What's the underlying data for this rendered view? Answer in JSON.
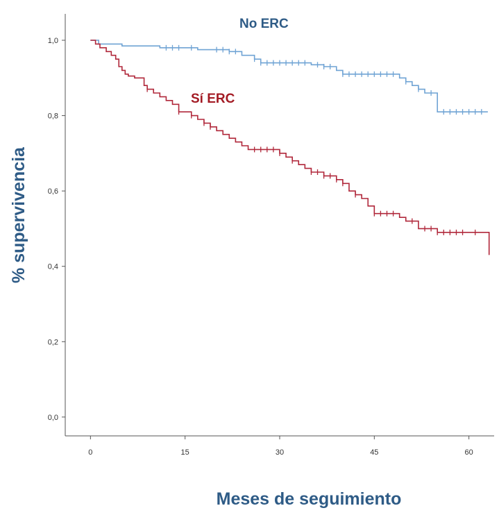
{
  "chart_data": {
    "type": "line",
    "subtype": "kaplan-meier step curves",
    "title": "",
    "xlabel": "Meses de seguimiento",
    "ylabel": "% supervivencia",
    "xlim": [
      -4,
      64
    ],
    "ylim": [
      -0.05,
      1.07
    ],
    "x_ticks": [
      0,
      15,
      30,
      45,
      60
    ],
    "x_tick_labels": [
      "0",
      "15",
      "30",
      "45",
      "60"
    ],
    "y_ticks": [
      0.0,
      0.2,
      0.4,
      0.6,
      0.8,
      1.0
    ],
    "y_tick_labels": [
      "0,0",
      "0,2",
      "0,4",
      "0,6",
      "0,8",
      "1,0"
    ],
    "grid": false,
    "legend": "none (series labelled directly on the plot)",
    "series": [
      {
        "name": "No ERC",
        "color": "#6fa3d4",
        "label_color": "#2e5b86",
        "steps": [
          [
            0,
            1.0
          ],
          [
            1.3,
            0.99
          ],
          [
            5,
            0.985
          ],
          [
            11,
            0.98
          ],
          [
            17,
            0.975
          ],
          [
            22,
            0.97
          ],
          [
            24,
            0.96
          ],
          [
            26,
            0.95
          ],
          [
            27,
            0.94
          ],
          [
            35,
            0.935
          ],
          [
            37,
            0.93
          ],
          [
            39,
            0.92
          ],
          [
            40,
            0.91
          ],
          [
            49,
            0.9
          ],
          [
            50,
            0.89
          ],
          [
            51,
            0.88
          ],
          [
            52,
            0.87
          ],
          [
            53,
            0.86
          ],
          [
            55,
            0.81
          ],
          [
            63,
            0.81
          ]
        ],
        "censored_x": [
          12,
          13,
          14,
          16,
          20,
          21,
          22,
          23,
          26,
          27,
          28,
          29,
          30,
          31,
          32,
          33,
          34,
          36,
          37,
          38,
          40,
          41,
          42,
          43,
          44,
          45,
          46,
          47,
          48,
          50,
          52,
          54,
          56,
          57,
          58,
          59,
          60,
          61,
          62
        ]
      },
      {
        "name": "Sí ERC",
        "color": "#b0273a",
        "label_color": "#a31b24",
        "steps": [
          [
            0,
            1.0
          ],
          [
            0.8,
            0.99
          ],
          [
            1.5,
            0.98
          ],
          [
            2.5,
            0.97
          ],
          [
            3.3,
            0.96
          ],
          [
            4,
            0.95
          ],
          [
            4.5,
            0.93
          ],
          [
            5,
            0.92
          ],
          [
            5.5,
            0.91
          ],
          [
            6,
            0.905
          ],
          [
            7,
            0.9
          ],
          [
            8.5,
            0.88
          ],
          [
            9,
            0.87
          ],
          [
            10,
            0.86
          ],
          [
            11,
            0.85
          ],
          [
            12,
            0.84
          ],
          [
            13,
            0.83
          ],
          [
            14,
            0.81
          ],
          [
            16,
            0.8
          ],
          [
            17,
            0.79
          ],
          [
            18,
            0.78
          ],
          [
            19,
            0.77
          ],
          [
            20,
            0.76
          ],
          [
            21,
            0.75
          ],
          [
            22,
            0.74
          ],
          [
            23,
            0.73
          ],
          [
            24,
            0.72
          ],
          [
            25,
            0.71
          ],
          [
            30,
            0.7
          ],
          [
            31,
            0.69
          ],
          [
            32,
            0.68
          ],
          [
            33,
            0.67
          ],
          [
            34,
            0.66
          ],
          [
            35,
            0.65
          ],
          [
            37,
            0.64
          ],
          [
            39,
            0.63
          ],
          [
            40,
            0.62
          ],
          [
            41,
            0.6
          ],
          [
            42,
            0.59
          ],
          [
            43,
            0.58
          ],
          [
            44,
            0.56
          ],
          [
            45,
            0.54
          ],
          [
            49,
            0.53
          ],
          [
            50,
            0.52
          ],
          [
            52,
            0.5
          ],
          [
            55,
            0.49
          ],
          [
            63,
            0.49
          ],
          [
            63.2,
            0.43
          ]
        ],
        "censored_x": [
          9,
          14,
          16,
          18,
          19,
          26,
          27,
          28,
          29,
          30,
          32,
          35,
          36,
          37,
          38,
          39,
          40,
          42,
          45,
          46,
          47,
          48,
          51,
          53,
          54,
          55,
          56,
          57,
          58,
          59,
          61
        ]
      }
    ]
  }
}
